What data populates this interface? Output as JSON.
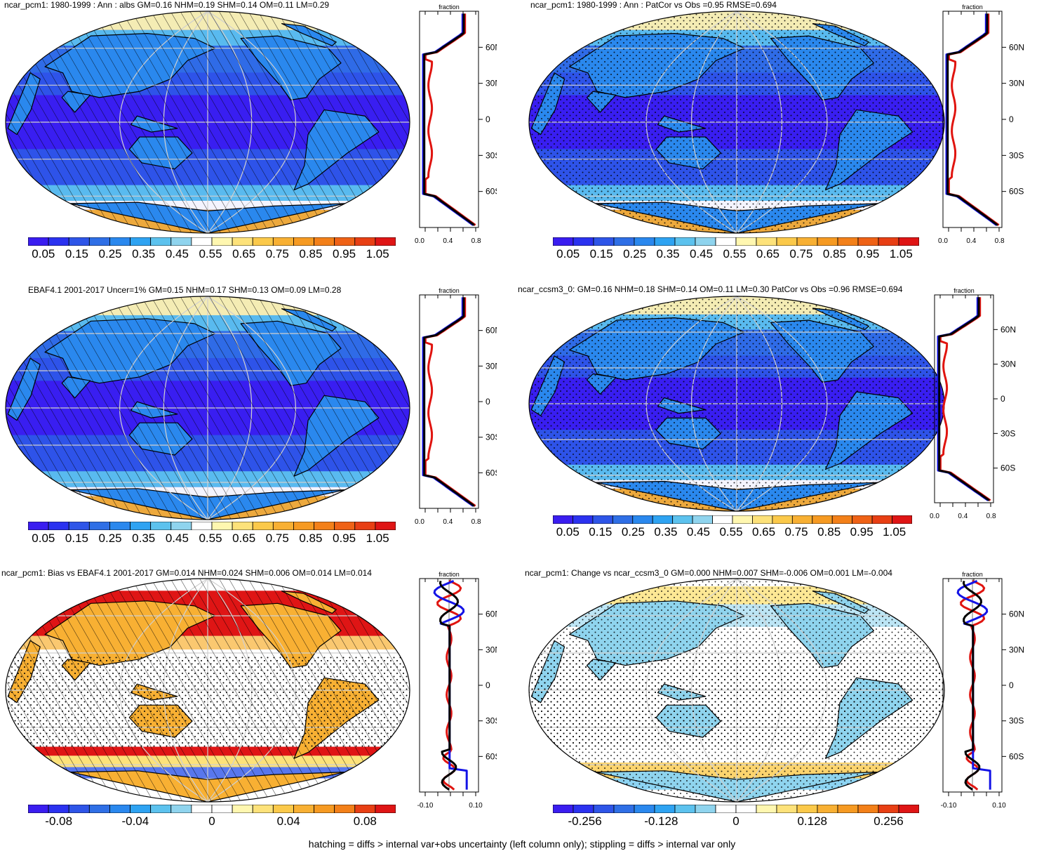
{
  "footer": "hatching = diffs > internal var+obs uncertainty (left column only); stippling = diffs > internal var only",
  "lat_labels": [
    "60N",
    "30N",
    "0",
    "30S",
    "60S"
  ],
  "profile_axis_title": "fraction",
  "colors": {
    "seq": [
      "#3a1df0",
      "#2b32f0",
      "#2e55e8",
      "#2f6fe6",
      "#2a88ee",
      "#2ea3f2",
      "#5cc2ee",
      "#8fd4ee",
      "#ffffff",
      "#fff7b0",
      "#fde27a",
      "#fbc94a",
      "#f8b033",
      "#f69a22",
      "#f38019",
      "#ef6216",
      "#e83f14",
      "#df1515"
    ],
    "div": [
      "#3a1df0",
      "#2b32f0",
      "#2e55e8",
      "#2f6fe6",
      "#2a88ee",
      "#2ea3f2",
      "#5cc2ee",
      "#8fd4ee",
      "#ffffff",
      "#ffffff",
      "#fff7b0",
      "#fde27a",
      "#fbc94a",
      "#f8b033",
      "#f69a22",
      "#f38019",
      "#e83f14",
      "#df1515"
    ],
    "model": "#e0140f",
    "obs": "#1414e6",
    "mean": "#000000"
  },
  "panels": [
    {
      "id": "p1",
      "title": "ncar_pcm1: 1980-1999 : Ann : albs GM=0.16 NHM=0.19 SHM=0.14 OM=0.11 LM=0.29",
      "cbar": [
        "0.05",
        "0.15",
        "0.25",
        "0.35",
        "0.45",
        "0.55",
        "0.65",
        "0.75",
        "0.85",
        "0.95",
        "1.05"
      ],
      "xticks": [
        "0.0",
        "0.4",
        "0.8"
      ],
      "style": "abs",
      "hatch": true
    },
    {
      "id": "p2",
      "title": "ncar_pcm1: 1980-1999 : Ann : PatCor vs Obs =0.95 RMSE=0.694",
      "cbar": [
        "0.05",
        "0.15",
        "0.25",
        "0.35",
        "0.45",
        "0.55",
        "0.65",
        "0.75",
        "0.85",
        "0.95",
        "1.05"
      ],
      "xticks": [
        "0.0",
        "0.4",
        "0.8"
      ],
      "style": "abs",
      "hatch": false
    },
    {
      "id": "p3",
      "title": "EBAF4.1 2001-2017 Uncer=1% GM=0.15 NHM=0.17 SHM=0.13 OM=0.09 LM=0.28",
      "cbar": [
        "0.05",
        "0.15",
        "0.25",
        "0.35",
        "0.45",
        "0.55",
        "0.65",
        "0.75",
        "0.85",
        "0.95",
        "1.05"
      ],
      "xticks": [
        "0.0",
        "0.4",
        "0.8"
      ],
      "style": "abs",
      "hatch": true
    },
    {
      "id": "p4",
      "title": "ncar_ccsm3_0: GM=0.16 NHM=0.18 SHM=0.14 OM=0.11 LM=0.30 PatCor vs Obs =0.96 RMSE=0.694",
      "cbar": [
        "0.05",
        "0.15",
        "0.25",
        "0.35",
        "0.45",
        "0.55",
        "0.65",
        "0.75",
        "0.85",
        "0.95",
        "1.05"
      ],
      "xticks": [
        "0.0",
        "0.4",
        "0.8"
      ],
      "style": "abs",
      "hatch": false
    },
    {
      "id": "p5",
      "title": "ncar_pcm1: Bias vs EBAF4.1 2001-2017 GM=0.014 NHM=0.024 SHM=0.006 OM=0.014 LM=0.014",
      "cbar": [
        "-0.08",
        "-0.04",
        "0",
        "0.04",
        "0.08"
      ],
      "xticks": [
        "-0.10",
        "0.10"
      ],
      "style": "bias",
      "hatch": true
    },
    {
      "id": "p6",
      "title": "ncar_pcm1: Change vs ncar_ccsm3_0 GM=0.000 NHM=0.007 SHM=-0.006 OM=0.001 LM=-0.004",
      "cbar": [
        "-0.256",
        "-0.128",
        "0",
        "0.128",
        "0.256"
      ],
      "xticks": [
        "-0.10",
        "0.10"
      ],
      "style": "change",
      "hatch": false
    }
  ]
}
